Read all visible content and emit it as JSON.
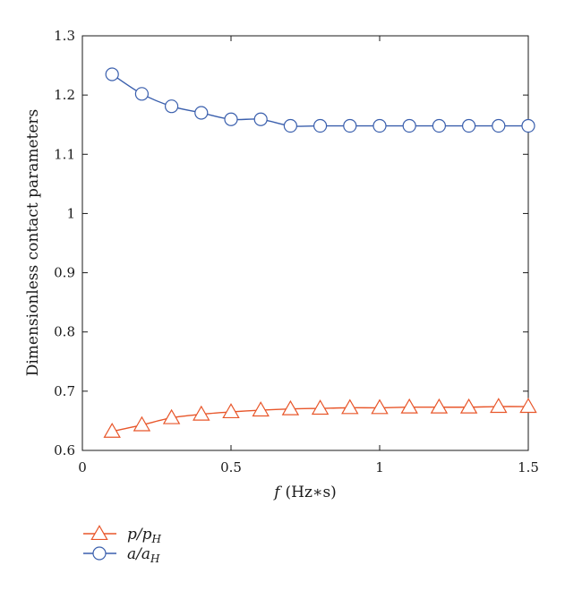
{
  "chart_data": {
    "type": "line",
    "title": "",
    "xlabel": "f (Hz*s)",
    "xlabel_parts": {
      "var": "f",
      "unit": "(Hz∗s)"
    },
    "ylabel": "Dimensionless contact parameters",
    "xlim": [
      0,
      1.5
    ],
    "ylim": [
      0.6,
      1.3
    ],
    "xticks": [
      0,
      0.5,
      1,
      1.5
    ],
    "xtick_labels": [
      "0",
      "0.5",
      "1",
      "1.5"
    ],
    "yticks": [
      0.6,
      0.7,
      0.8,
      0.9,
      1.0,
      1.1,
      1.2,
      1.3
    ],
    "ytick_labels": [
      "0.6",
      "0.7",
      "0.8",
      "0.9",
      "1",
      "1.1",
      "1.2",
      "1.3"
    ],
    "grid": false,
    "legend_position": "below-left",
    "x": [
      0.1,
      0.2,
      0.3,
      0.4,
      0.5,
      0.6,
      0.7,
      0.8,
      0.9,
      1.0,
      1.1,
      1.2,
      1.3,
      1.4,
      1.5
    ],
    "series": [
      {
        "name": "p/p_H",
        "label_main": "p/p",
        "label_sub": "H",
        "marker": "triangle",
        "color": "#e8562a",
        "values": [
          0.632,
          0.643,
          0.655,
          0.661,
          0.665,
          0.668,
          0.67,
          0.671,
          0.672,
          0.672,
          0.673,
          0.673,
          0.673,
          0.674,
          0.674
        ]
      },
      {
        "name": "a/a_H",
        "label_main": "a/a",
        "label_sub": "H",
        "marker": "circle",
        "color": "#3a5fad",
        "values": [
          1.235,
          1.202,
          1.181,
          1.17,
          1.159,
          1.159,
          1.148,
          1.148,
          1.148,
          1.148,
          1.148,
          1.148,
          1.148,
          1.148,
          1.148
        ]
      }
    ]
  }
}
